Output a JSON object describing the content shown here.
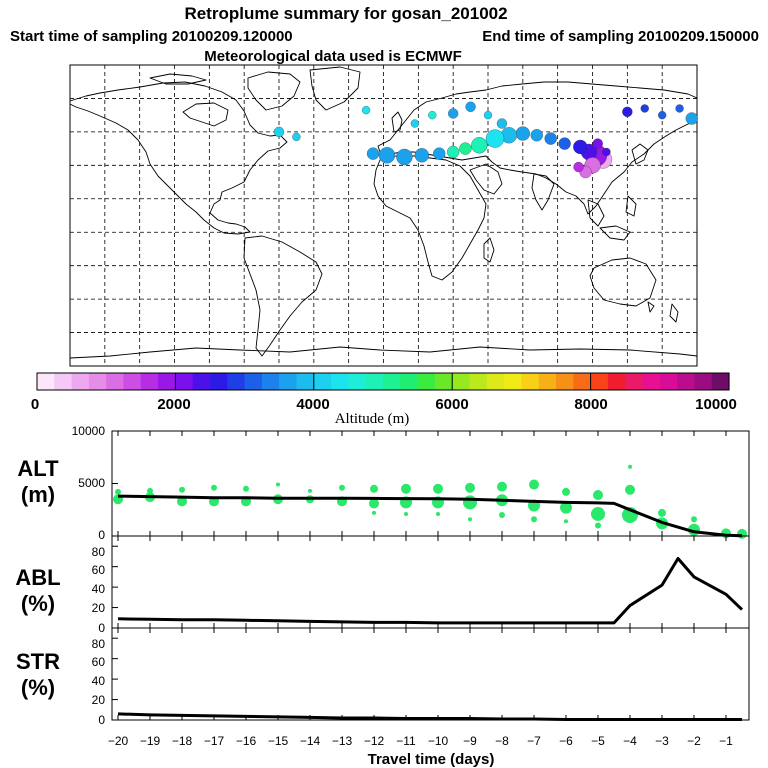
{
  "title": "Retroplume summary for gosan_201002",
  "start_label": "Start time of sampling 20100209.120000",
  "end_label": "End time of sampling 20100209.150000",
  "met_label": "Meteorological data used is ECMWF",
  "colorbar": {
    "label": "Altitude (m)",
    "ticks": [
      "0",
      "2000",
      "4000",
      "6000",
      "8000",
      "10000"
    ],
    "colors": [
      "#fbe6fb",
      "#f5c8f5",
      "#eea8f0",
      "#e68ce9",
      "#dc6ee3",
      "#cc4ee2",
      "#b82ce4",
      "#9a17e8",
      "#7a10ea",
      "#4d10e8",
      "#2d1ae6",
      "#1f3ee6",
      "#1c60e8",
      "#1a82ea",
      "#1ca2ec",
      "#1dbcee",
      "#1dd0f0",
      "#1de2f0",
      "#1eeed8",
      "#1ef0b6",
      "#1ef094",
      "#20ee72",
      "#38ec40",
      "#68e828",
      "#96e820",
      "#bce81e",
      "#dcea1c",
      "#f2ea18",
      "#f7d018",
      "#f8b018",
      "#f89018",
      "#f86c18",
      "#f84418",
      "#ee1e30",
      "#ea1a68",
      "#e81090",
      "#d80c98",
      "#bc0c8e",
      "#9a0c80",
      "#6e0c68"
    ]
  },
  "map_points": [
    {
      "lon": 126.0,
      "lat": 33.5,
      "alt": 500,
      "r": 9
    },
    {
      "lon": 122.0,
      "lat": 36.0,
      "alt": 1800,
      "r": 11
    },
    {
      "lon": 118.0,
      "lat": 38.0,
      "alt": 2300,
      "r": 8
    },
    {
      "lon": 113.0,
      "lat": 41.0,
      "alt": 2600,
      "r": 7
    },
    {
      "lon": 120.0,
      "lat": 30.0,
      "alt": 1000,
      "r": 8
    },
    {
      "lon": 116.0,
      "lat": 26.0,
      "alt": 1200,
      "r": 6
    },
    {
      "lon": 112.0,
      "lat": 29.0,
      "alt": 1500,
      "r": 5
    },
    {
      "lon": 123.0,
      "lat": 43.0,
      "alt": 2200,
      "r": 5
    },
    {
      "lon": 128.0,
      "lat": 38.0,
      "alt": 2400,
      "r": 4
    },
    {
      "lon": 104.0,
      "lat": 43.0,
      "alt": 3000,
      "r": 6
    },
    {
      "lon": 96.0,
      "lat": 46.0,
      "alt": 3300,
      "r": 6
    },
    {
      "lon": 88.0,
      "lat": 48.0,
      "alt": 3500,
      "r": 6
    },
    {
      "lon": 80.0,
      "lat": 49.0,
      "alt": 3600,
      "r": 7
    },
    {
      "lon": 72.0,
      "lat": 48.0,
      "alt": 3800,
      "r": 8
    },
    {
      "lon": 64.0,
      "lat": 46.0,
      "alt": 4300,
      "r": 9
    },
    {
      "lon": 55.0,
      "lat": 42.0,
      "alt": 4800,
      "r": 8
    },
    {
      "lon": 47.0,
      "lat": 40.0,
      "alt": 5200,
      "r": 6
    },
    {
      "lon": 40.0,
      "lat": 38.0,
      "alt": 4800,
      "r": 6
    },
    {
      "lon": 32.0,
      "lat": 37.0,
      "alt": 3700,
      "r": 6
    },
    {
      "lon": 22.0,
      "lat": 36.0,
      "alt": 3700,
      "r": 7
    },
    {
      "lon": 12.0,
      "lat": 35.0,
      "alt": 3600,
      "r": 8
    },
    {
      "lon": 2.0,
      "lat": 36.0,
      "alt": 3500,
      "r": 8
    },
    {
      "lon": -6.0,
      "lat": 37.0,
      "alt": 3600,
      "r": 6
    },
    {
      "lon": 40.0,
      "lat": 61.0,
      "alt": 3500,
      "r": 5
    },
    {
      "lon": 50.0,
      "lat": 65.0,
      "alt": 3600,
      "r": 5
    },
    {
      "lon": 60.0,
      "lat": 60.0,
      "alt": 4000,
      "r": 4
    },
    {
      "lon": 68.0,
      "lat": 55.0,
      "alt": 3900,
      "r": 5
    },
    {
      "lon": 18.0,
      "lat": 55.0,
      "alt": 4200,
      "r": 4
    },
    {
      "lon": 28.0,
      "lat": 60.0,
      "alt": 4500,
      "r": 4
    },
    {
      "lon": -60.0,
      "lat": 50.0,
      "alt": 4100,
      "r": 5
    },
    {
      "lon": -50.0,
      "lat": 47.0,
      "alt": 4000,
      "r": 4
    },
    {
      "lon": -10.0,
      "lat": 63.0,
      "alt": 4400,
      "r": 4
    },
    {
      "lon": 140.0,
      "lat": 62.0,
      "alt": 2500,
      "r": 5
    },
    {
      "lon": 150.0,
      "lat": 64.0,
      "alt": 2800,
      "r": 4
    },
    {
      "lon": 160.0,
      "lat": 60.0,
      "alt": 3200,
      "r": 4
    },
    {
      "lon": 170.0,
      "lat": 64.0,
      "alt": 3000,
      "r": 4
    },
    {
      "lon": 177.0,
      "lat": 58.0,
      "alt": 3600,
      "r": 6
    }
  ],
  "panels": {
    "alt": {
      "label_top": "ALT",
      "label_bottom": "(m)",
      "yticks": [
        "0",
        "5000",
        "10000"
      ]
    },
    "abl": {
      "label_top": "ABL",
      "label_bottom": "(%)",
      "yticks": [
        "0",
        "20",
        "40",
        "60",
        "80"
      ]
    },
    "str": {
      "label_top": "STR",
      "label_bottom": "(%)",
      "yticks": [
        "0",
        "20",
        "40",
        "60",
        "80"
      ]
    }
  },
  "xaxis": {
    "label": "Travel time (days)",
    "ticks": [
      "−20",
      "−19",
      "−18",
      "−17",
      "−16",
      "−15",
      "−14",
      "−13",
      "−12",
      "−11",
      "−10",
      "−9",
      "−8",
      "−7",
      "−6",
      "−5",
      "−4",
      "−3",
      "−2",
      "−1"
    ]
  },
  "chart_data": {
    "type": "line",
    "title": "Retroplume summary for gosan_201002",
    "xlabel": "Travel time (days)",
    "xlim": [
      -20.2,
      -0.2
    ],
    "series": [
      {
        "name": "ALT",
        "ylabel": "ALT (m)",
        "ylim": [
          0,
          10000
        ],
        "x": [
          -20,
          -19,
          -18,
          -17,
          -16,
          -15,
          -14,
          -13,
          -12,
          -11,
          -10,
          -9,
          -8,
          -7,
          -6,
          -5,
          -4.5,
          -4,
          -3,
          -2,
          -1,
          -0.5
        ],
        "values": [
          3800,
          3750,
          3700,
          3650,
          3650,
          3600,
          3600,
          3600,
          3580,
          3560,
          3550,
          3500,
          3400,
          3300,
          3200,
          3150,
          3100,
          2500,
          1300,
          400,
          80,
          30
        ]
      },
      {
        "name": "ABL",
        "ylabel": "ABL (%)",
        "ylim": [
          0,
          90
        ],
        "x": [
          -20,
          -19,
          -18,
          -17,
          -16,
          -15,
          -14,
          -13,
          -12,
          -11,
          -10,
          -9,
          -8,
          -7,
          -6,
          -5,
          -4.5,
          -4,
          -3,
          -2.5,
          -2,
          -1,
          -0.5
        ],
        "values": [
          9,
          8.5,
          8,
          8,
          7.5,
          7,
          6.5,
          6,
          5.5,
          5.5,
          5,
          5,
          5,
          5,
          5,
          5,
          5,
          22,
          42,
          68,
          50,
          33,
          18
        ]
      },
      {
        "name": "STR",
        "ylabel": "STR (%)",
        "ylim": [
          0,
          90
        ],
        "x": [
          -20,
          -19,
          -18,
          -17,
          -16,
          -15,
          -14,
          -13,
          -12,
          -11,
          -10,
          -9,
          -8,
          -7,
          -6,
          -5,
          -4,
          -3,
          -2,
          -1,
          -0.5
        ],
        "values": [
          6,
          5,
          4.5,
          4,
          3.5,
          3,
          2.5,
          2,
          2,
          1.5,
          1.5,
          1.5,
          1,
          1,
          0.5,
          0.5,
          0.5,
          0.5,
          0.5,
          0.5,
          0.5
        ]
      }
    ],
    "alt_scatter": [
      {
        "x": -20,
        "y": 3500,
        "r": 5
      },
      {
        "x": -20,
        "y": 4200,
        "r": 3
      },
      {
        "x": -19,
        "y": 3700,
        "r": 5
      },
      {
        "x": -19,
        "y": 4300,
        "r": 3
      },
      {
        "x": -18,
        "y": 3300,
        "r": 5
      },
      {
        "x": -18,
        "y": 4400,
        "r": 3
      },
      {
        "x": -17,
        "y": 3300,
        "r": 5
      },
      {
        "x": -17,
        "y": 4600,
        "r": 3
      },
      {
        "x": -16,
        "y": 3300,
        "r": 5
      },
      {
        "x": -16,
        "y": 4500,
        "r": 3
      },
      {
        "x": -15,
        "y": 3500,
        "r": 5
      },
      {
        "x": -15,
        "y": 4900,
        "r": 2
      },
      {
        "x": -14,
        "y": 3500,
        "r": 4
      },
      {
        "x": -14,
        "y": 4300,
        "r": 2
      },
      {
        "x": -13,
        "y": 3300,
        "r": 5
      },
      {
        "x": -13,
        "y": 4600,
        "r": 3
      },
      {
        "x": -12,
        "y": 3100,
        "r": 5
      },
      {
        "x": -12,
        "y": 4500,
        "r": 4
      },
      {
        "x": -12,
        "y": 2200,
        "r": 2
      },
      {
        "x": -11,
        "y": 3200,
        "r": 6
      },
      {
        "x": -11,
        "y": 4500,
        "r": 5
      },
      {
        "x": -11,
        "y": 2100,
        "r": 2
      },
      {
        "x": -10,
        "y": 3200,
        "r": 6
      },
      {
        "x": -10,
        "y": 4500,
        "r": 5
      },
      {
        "x": -10,
        "y": 2100,
        "r": 2
      },
      {
        "x": -9,
        "y": 3200,
        "r": 7
      },
      {
        "x": -9,
        "y": 4600,
        "r": 5
      },
      {
        "x": -9,
        "y": 1600,
        "r": 2
      },
      {
        "x": -8,
        "y": 3400,
        "r": 6
      },
      {
        "x": -8,
        "y": 4700,
        "r": 5
      },
      {
        "x": -8,
        "y": 2000,
        "r": 3
      },
      {
        "x": -7,
        "y": 2900,
        "r": 6
      },
      {
        "x": -7,
        "y": 4900,
        "r": 5
      },
      {
        "x": -7,
        "y": 1600,
        "r": 3
      },
      {
        "x": -6,
        "y": 2700,
        "r": 6
      },
      {
        "x": -6,
        "y": 4200,
        "r": 4
      },
      {
        "x": -6,
        "y": 1400,
        "r": 2
      },
      {
        "x": -5,
        "y": 2100,
        "r": 7
      },
      {
        "x": -5,
        "y": 3900,
        "r": 5
      },
      {
        "x": -5,
        "y": 1000,
        "r": 3
      },
      {
        "x": -4,
        "y": 2000,
        "r": 8
      },
      {
        "x": -4,
        "y": 4400,
        "r": 5
      },
      {
        "x": -4,
        "y": 6600,
        "r": 2
      },
      {
        "x": -3,
        "y": 1200,
        "r": 6
      },
      {
        "x": -3,
        "y": 2200,
        "r": 4
      },
      {
        "x": -2,
        "y": 600,
        "r": 6
      },
      {
        "x": -2,
        "y": 1600,
        "r": 3
      },
      {
        "x": -1,
        "y": 250,
        "r": 5
      },
      {
        "x": -0.5,
        "y": 200,
        "r": 5
      }
    ]
  }
}
